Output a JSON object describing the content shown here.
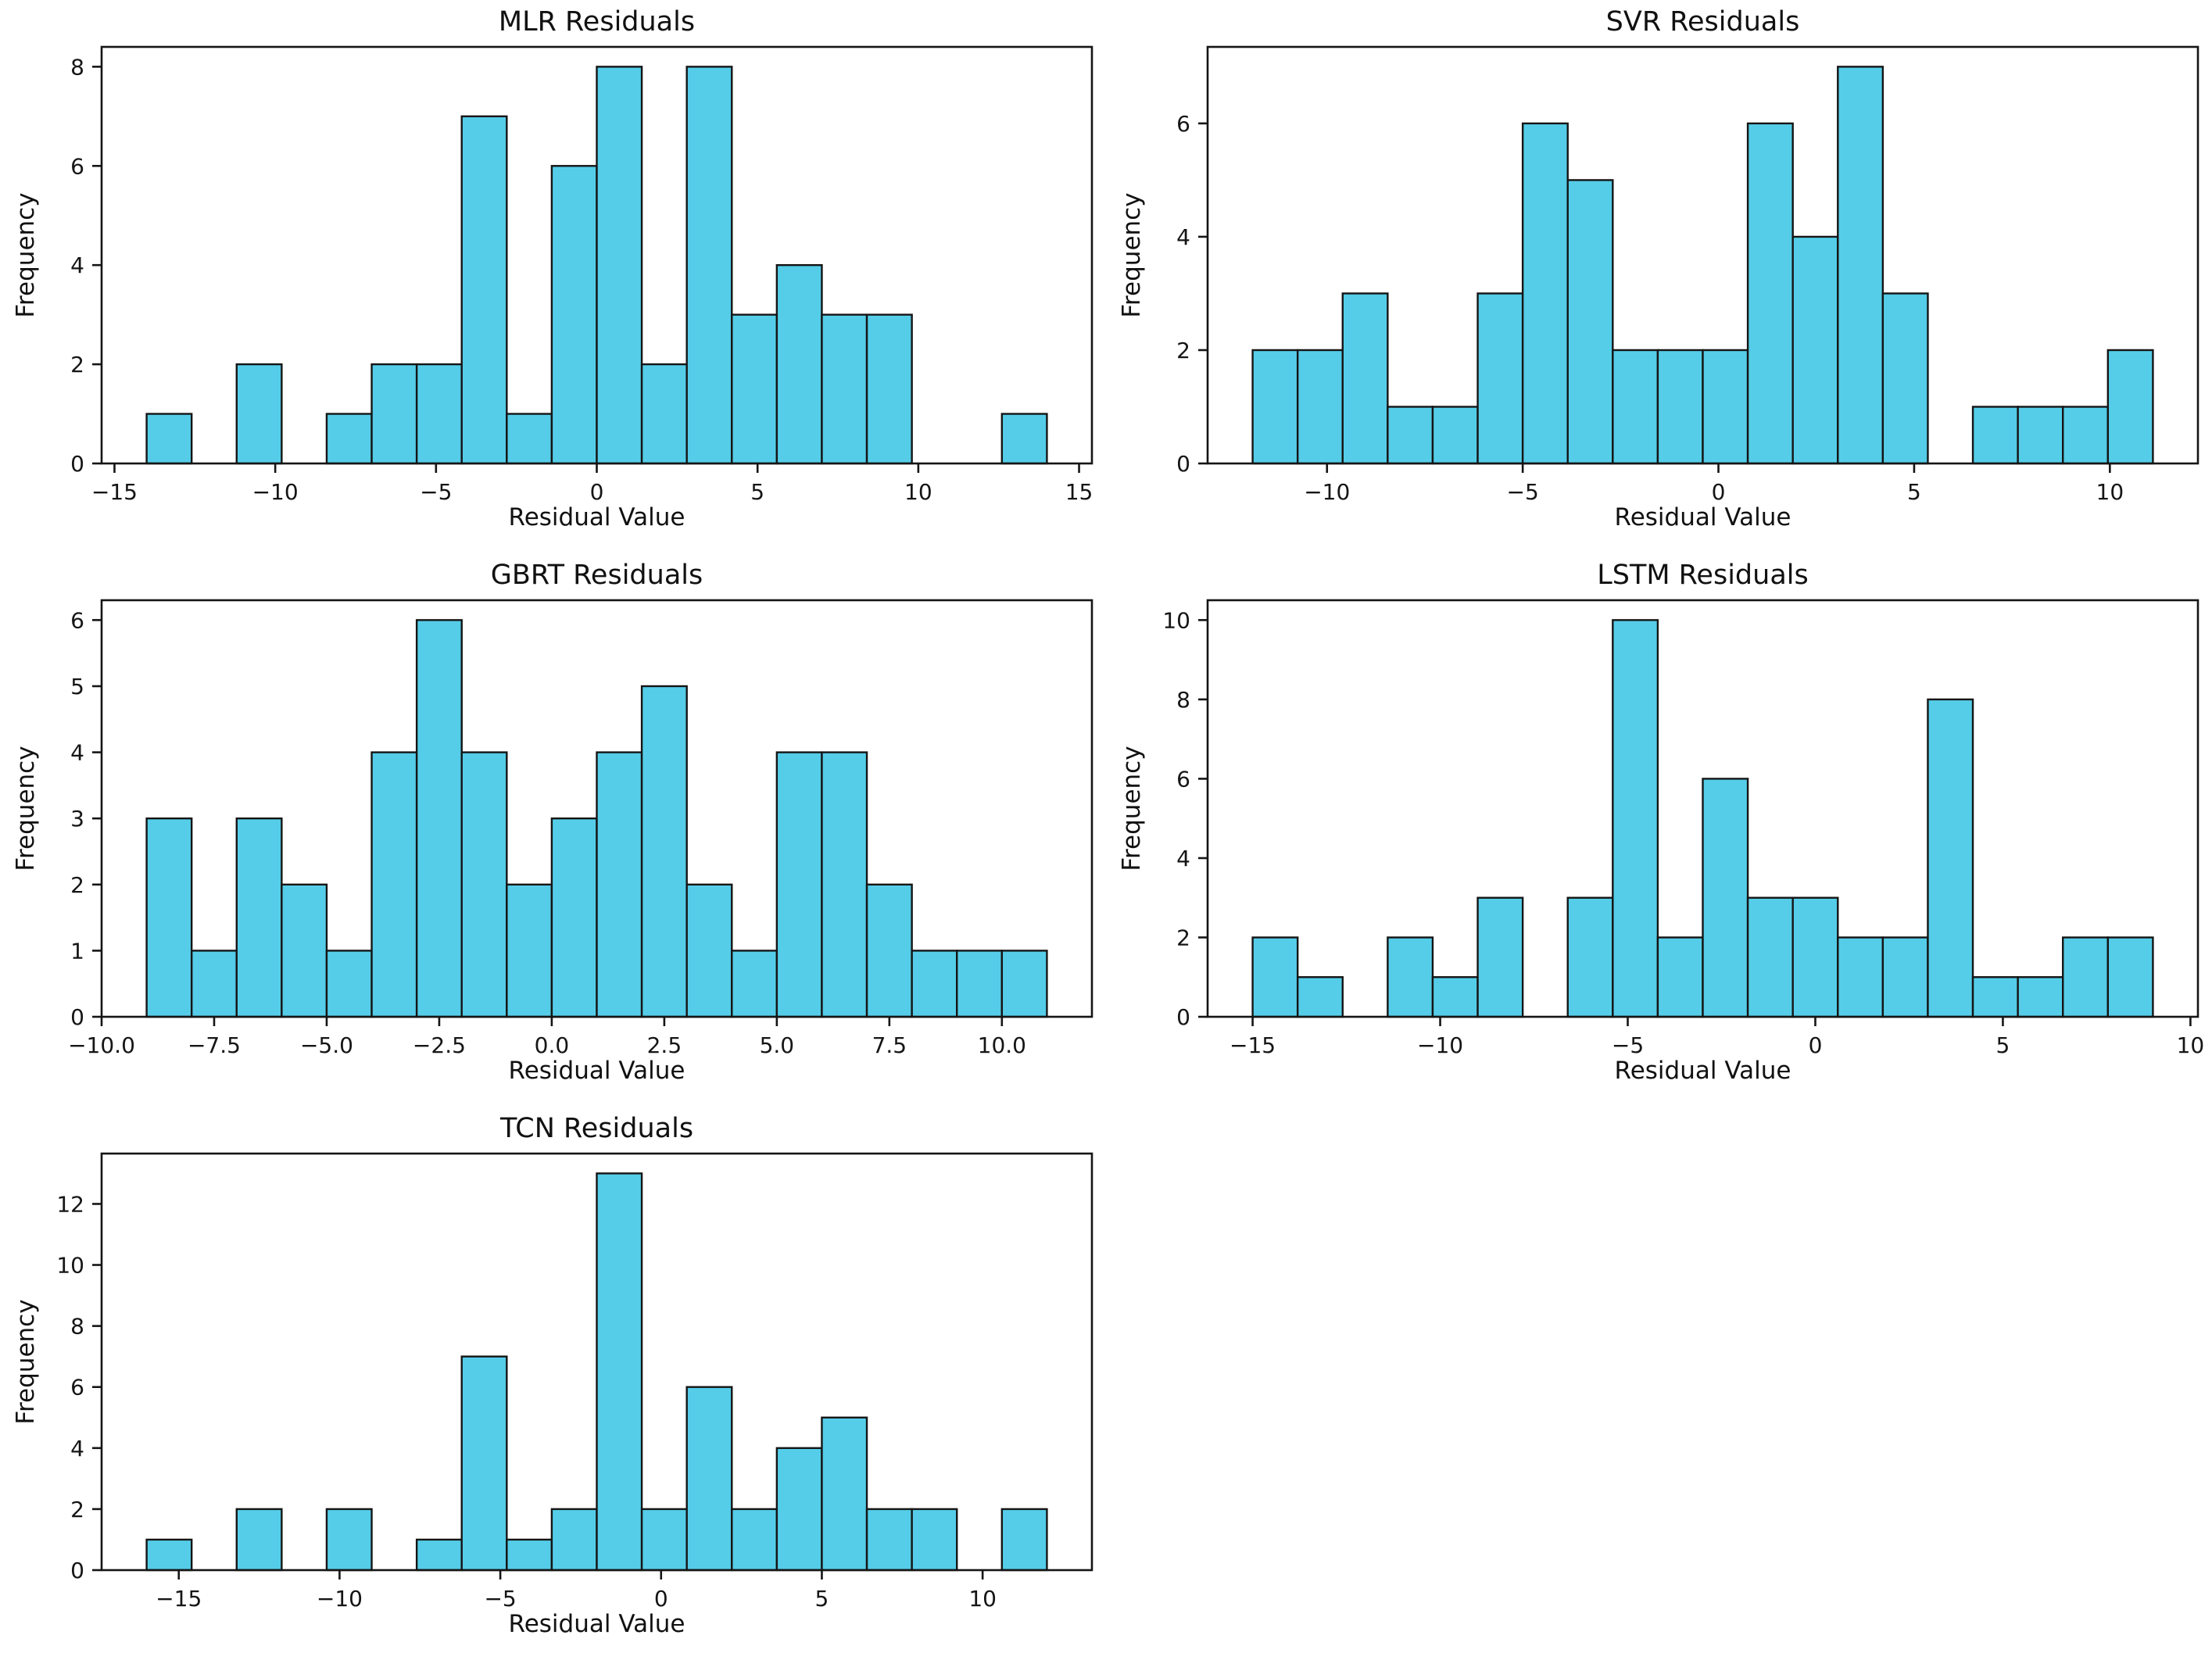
{
  "figure": {
    "background": "#ffffff",
    "bar_fill": "#55cde8",
    "bar_edge": "#151515",
    "axis_color": "#151515",
    "text_color": "#151515"
  },
  "chart_data": [
    {
      "type": "bar",
      "subtype": "histogram",
      "title": "MLR Residuals",
      "xlabel": "Residual Value",
      "ylabel": "Frequency",
      "bin_start": -14.0,
      "bin_width": 1.4,
      "frequencies": [
        1,
        0,
        2,
        0,
        1,
        2,
        2,
        7,
        1,
        6,
        8,
        2,
        8,
        3,
        4,
        3,
        3,
        0,
        0,
        1
      ],
      "xlim": [
        -15.4,
        15.4
      ],
      "ylim": [
        0,
        8.4
      ],
      "xticks": [
        -15,
        -10,
        -5,
        0,
        5,
        10,
        15
      ],
      "yticks": [
        0,
        2,
        4,
        6,
        8
      ],
      "xtick_decimals": 0,
      "grid": false,
      "legend": null
    },
    {
      "type": "bar",
      "subtype": "histogram",
      "title": "SVR Residuals",
      "xlabel": "Residual Value",
      "ylabel": "Frequency",
      "bin_start": -11.9,
      "bin_width": 1.15,
      "frequencies": [
        2,
        2,
        3,
        1,
        1,
        3,
        6,
        5,
        2,
        2,
        2,
        6,
        4,
        7,
        3,
        0,
        1,
        1,
        1,
        2
      ],
      "xlim": [
        -13.05,
        12.25
      ],
      "ylim": [
        0,
        7.35
      ],
      "xticks": [
        -10,
        -5,
        0,
        5,
        10
      ],
      "yticks": [
        0,
        2,
        4,
        6
      ],
      "xtick_decimals": 0,
      "grid": false,
      "legend": null
    },
    {
      "type": "bar",
      "subtype": "histogram",
      "title": "GBRT Residuals",
      "xlabel": "Residual Value",
      "ylabel": "Frequency",
      "bin_start": -9.0,
      "bin_width": 1.0,
      "frequencies": [
        3,
        1,
        3,
        2,
        1,
        4,
        6,
        4,
        2,
        3,
        4,
        5,
        2,
        1,
        4,
        4,
        2,
        1,
        1,
        1
      ],
      "xlim": [
        -10.0,
        12.0
      ],
      "ylim": [
        0,
        6.3
      ],
      "xticks": [
        -10.0,
        -7.5,
        -5.0,
        -2.5,
        0.0,
        2.5,
        5.0,
        7.5,
        10.0
      ],
      "yticks": [
        0,
        1,
        2,
        3,
        4,
        5,
        6
      ],
      "xtick_decimals": 1,
      "grid": false,
      "legend": null
    },
    {
      "type": "bar",
      "subtype": "histogram",
      "title": "LSTM Residuals",
      "xlabel": "Residual Value",
      "ylabel": "Frequency",
      "bin_start": -15.0,
      "bin_width": 1.2,
      "frequencies": [
        2,
        1,
        0,
        2,
        1,
        3,
        0,
        3,
        10,
        2,
        6,
        3,
        3,
        2,
        2,
        8,
        1,
        1,
        2,
        2
      ],
      "xlim": [
        -16.2,
        10.2
      ],
      "ylim": [
        0,
        10.5
      ],
      "xticks": [
        -15,
        -10,
        -5,
        0,
        5,
        10
      ],
      "yticks": [
        0,
        2,
        4,
        6,
        8,
        10
      ],
      "xtick_decimals": 0,
      "grid": false,
      "legend": null
    },
    {
      "type": "bar",
      "subtype": "histogram",
      "title": "TCN Residuals",
      "xlabel": "Residual Value",
      "ylabel": "Frequency",
      "bin_start": -16.0,
      "bin_width": 1.4,
      "frequencies": [
        1,
        0,
        2,
        0,
        2,
        0,
        1,
        7,
        1,
        2,
        13,
        2,
        6,
        2,
        4,
        5,
        2,
        2,
        0,
        2
      ],
      "xlim": [
        -17.4,
        13.4
      ],
      "ylim": [
        0,
        13.65
      ],
      "xticks": [
        -15,
        -10,
        -5,
        0,
        5,
        10
      ],
      "yticks": [
        0,
        2,
        4,
        6,
        8,
        10,
        12
      ],
      "xtick_decimals": 0,
      "grid": false,
      "legend": null
    }
  ]
}
